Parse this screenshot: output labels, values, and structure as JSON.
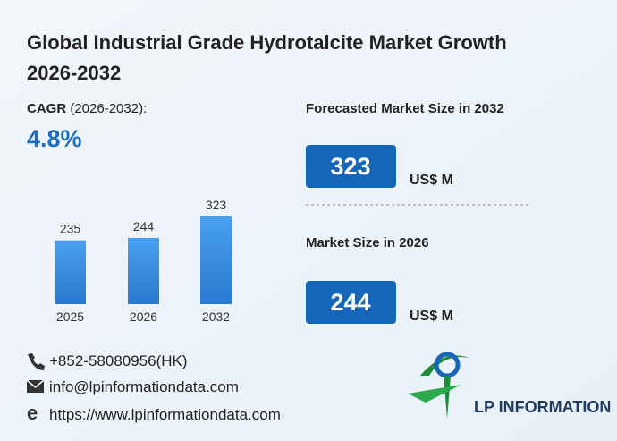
{
  "title": "Global Industrial Grade Hydrotalcite Market Growth 2026-2032",
  "cagr": {
    "label": "CAGR",
    "period": "(2026-2032):",
    "value": "4.8%"
  },
  "forecast": {
    "label": "Forecasted Market Size in 2032",
    "value": "323",
    "unit": "US$ M"
  },
  "current": {
    "label": "Market Size in 2026",
    "value": "244",
    "unit": "US$ M"
  },
  "contact": {
    "phone": "+852-58080956(HK)",
    "email": "info@lpinformationdata.com",
    "web": "https://www.lpinformationdata.com"
  },
  "logo": "LP INFORMATION",
  "chart_data": {
    "type": "bar",
    "categories": [
      "2025",
      "2026",
      "2032"
    ],
    "values": [
      235,
      244,
      323
    ],
    "color": "#3d8fe6"
  }
}
